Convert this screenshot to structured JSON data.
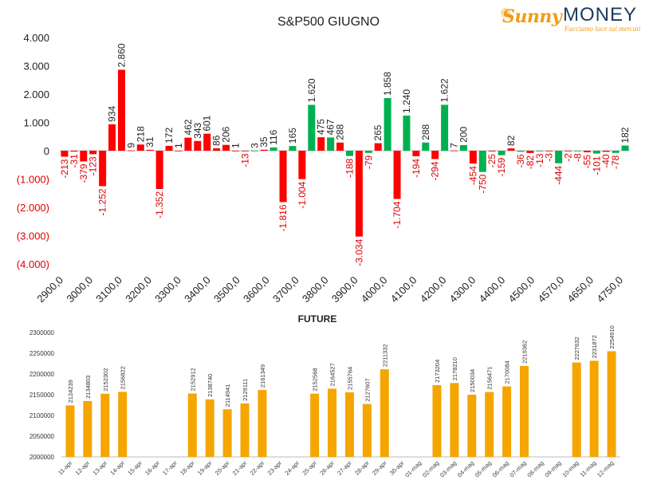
{
  "logo": {
    "brand_1": "Sunny",
    "brand_2": "MONEY",
    "tagline": "Facciamo luce sui mercati"
  },
  "colors": {
    "positive": "#00b050",
    "negative": "#ff0000",
    "neg_text": "#e00000",
    "future_bar": "#f5a500"
  },
  "chart_data": [
    {
      "type": "bar",
      "title": "S&P500 GIUGNO",
      "ylim": [
        -4000,
        4000
      ],
      "y_ticks": [
        "4.000",
        "3.000",
        "2.000",
        "1.000",
        "0",
        "(1.000)",
        "(2.000)",
        "(3.000)",
        "(4.000)"
      ],
      "y_tick_values": [
        4000,
        3000,
        2000,
        1000,
        0,
        -1000,
        -2000,
        -3000,
        -4000
      ],
      "x_tick_labels": [
        "2900,0",
        "3000,0",
        "3100,0",
        "3200,0",
        "3300,0",
        "3400,0",
        "3500,0",
        "3600,0",
        "3700,0",
        "3800,0",
        "3900,0",
        "4000,0",
        "4100,0",
        "4200,0",
        "4300,0",
        "4400,0",
        "4500,0",
        "4570,0",
        "4650,0",
        "4750,0"
      ],
      "series": [
        {
          "values": [
            -213,
            -31,
            -379,
            -123,
            -1252,
            934,
            2860,
            9,
            218,
            31,
            -1352,
            172,
            1,
            462,
            343,
            601,
            86,
            206,
            1,
            -13,
            3,
            35,
            116,
            -1816,
            165,
            -1004,
            1620,
            475,
            467,
            288,
            -188,
            -3034,
            -79,
            265,
            1858,
            -1704,
            1240,
            -194,
            288,
            -294,
            1622,
            7,
            200,
            -454,
            -750,
            -25,
            -159,
            82,
            -36,
            -82,
            -13,
            -3,
            -444,
            -2,
            -8,
            -55,
            -101,
            -40,
            -78,
            182
          ]
        }
      ],
      "value_labels": [
        "-213",
        "-31",
        "-379",
        "-123",
        "-1.252",
        "934",
        "2.860",
        "9",
        "218",
        "31",
        "-1.352",
        "172",
        "1",
        "462",
        "343",
        "601",
        "86",
        "206",
        "1",
        "-13",
        "3",
        "35",
        "116",
        "-1.816",
        "165",
        "-1.004",
        "1.620",
        "475",
        "467",
        "288",
        "-188",
        "-3.034",
        "-79",
        "265",
        "1.858",
        "-1.704",
        "1.240",
        "-194",
        "288",
        "-294",
        "1.622",
        "7",
        "200",
        "-454",
        "-750",
        "-25",
        "-159",
        "82",
        "-36",
        "-82",
        "-13",
        "-3",
        "-444",
        "-2",
        "-8",
        "-55",
        "-101",
        "-40",
        "-78",
        "182"
      ],
      "bar_colors": [
        "r",
        "r",
        "r",
        "r",
        "r",
        "r",
        "r",
        "r",
        "r",
        "r",
        "r",
        "r",
        "r",
        "r",
        "r",
        "r",
        "r",
        "r",
        "r",
        "r",
        "g",
        "r",
        "g",
        "r",
        "g",
        "r",
        "g",
        "r",
        "g",
        "r",
        "g",
        "r",
        "g",
        "r",
        "g",
        "r",
        "g",
        "r",
        "g",
        "r",
        "g",
        "r",
        "g",
        "r",
        "g",
        "r",
        "g",
        "r",
        "g",
        "r",
        "g",
        "r",
        "g",
        "r",
        "g",
        "r",
        "g",
        "r",
        "g",
        "g"
      ]
    },
    {
      "type": "bar",
      "title": "FUTURE",
      "ylim": [
        2000000,
        2300000
      ],
      "y_ticks": [
        "2300000",
        "2250000",
        "2200000",
        "2150000",
        "2100000",
        "2050000",
        "2000000"
      ],
      "y_tick_values": [
        2300000,
        2250000,
        2200000,
        2150000,
        2100000,
        2050000,
        2000000
      ],
      "categories": [
        "11-apr",
        "12-apr",
        "13-apr",
        "14-apr",
        "15-apr",
        "16-apr",
        "17-apr",
        "18-apr",
        "19-apr",
        "20-apr",
        "21-apr",
        "22-apr",
        "23-apr",
        "24-apr",
        "25-apr",
        "26-apr",
        "27-apr",
        "28-apr",
        "29-apr",
        "30-apr",
        "01-mag",
        "02-mag",
        "03-mag",
        "04-mag",
        "05-mag",
        "06-mag",
        "07-mag",
        "08-mag",
        "09-mag",
        "10-mag",
        "11-mag",
        "12-mag"
      ],
      "values": [
        2124239,
        2134803,
        2152302,
        2156822,
        null,
        null,
        null,
        2152912,
        2138740,
        2114941,
        2129111,
        2161349,
        null,
        null,
        2152568,
        2164527,
        2155764,
        2127607,
        2211332,
        null,
        null,
        2173204,
        2178210,
        2150034,
        2156471,
        2170084,
        2219362,
        null,
        null,
        2227632,
        2231872,
        2254910
      ]
    }
  ]
}
